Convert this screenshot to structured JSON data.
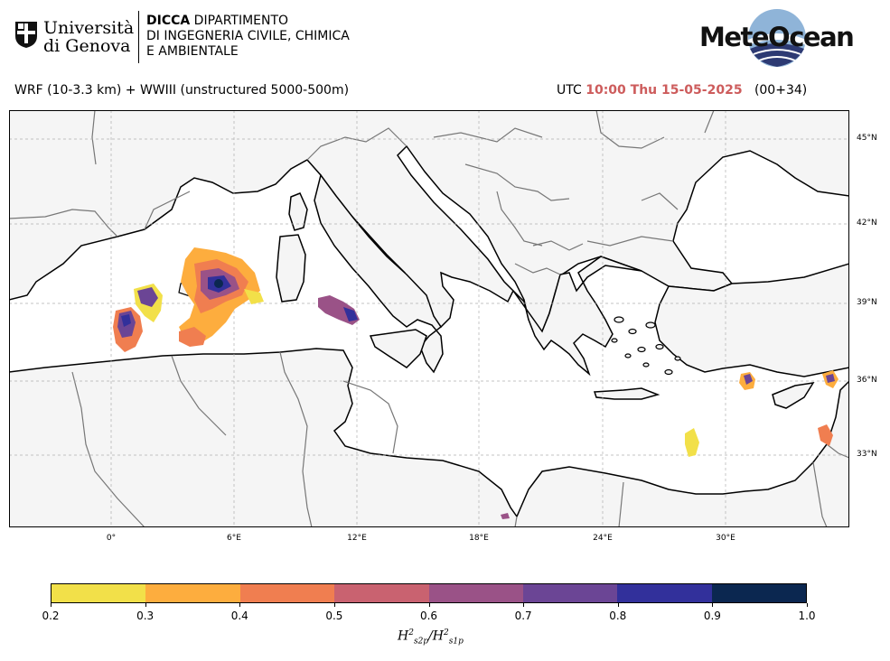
{
  "header": {
    "unige_line1": "Università",
    "unige_line2": "di Genova",
    "dicca_bold": "DICCA",
    "dicca_line1_rest": " DIPARTIMENTO",
    "dicca_line2": "DI INGEGNERIA CIVILE, CHIMICA",
    "dicca_line3": "E AMBIENTALE",
    "meteocean_logo": "MeteOcean"
  },
  "title": {
    "model": "WRF (10-3.3 km) + WWIII (unstructured 5000-500m)",
    "utc_prefix": "UTC",
    "time": "10:00 Thu 15-05-2025",
    "forecast_step": "(00+34)"
  },
  "map": {
    "lat_ticks": [
      "45°N",
      "42°N",
      "39°N",
      "36°N",
      "33°N"
    ],
    "lon_ticks": [
      "0°",
      "6°E",
      "12°E",
      "18°E",
      "24°E",
      "30°E"
    ],
    "colors": {
      "land": "#f5f5f5",
      "sea": "#ffffff",
      "coast": "#000000",
      "border": "#777777",
      "grid": "#b0b0b0"
    }
  },
  "colorbar": {
    "ticks": [
      "0.2",
      "0.3",
      "0.4",
      "0.5",
      "0.6",
      "0.7",
      "0.8",
      "0.9",
      "1.0"
    ],
    "colors": [
      "#f2e049",
      "#fdad3e",
      "#f07e50",
      "#c96270",
      "#9a5287",
      "#6b4595",
      "#32309b",
      "#0b2750"
    ],
    "label_main": "H",
    "label_sub1": "s2p",
    "label_sub2": "s1p",
    "label_sup": "2"
  }
}
